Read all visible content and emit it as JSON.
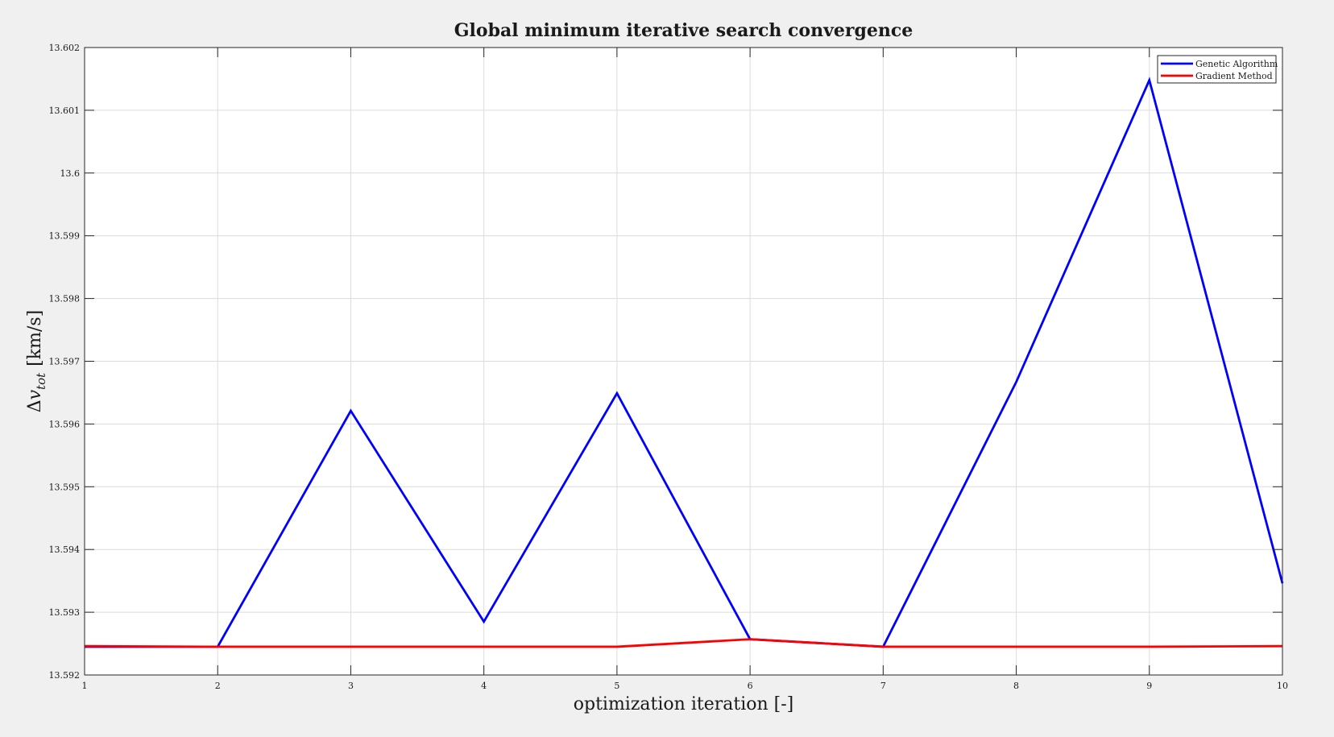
{
  "chart_data": {
    "type": "line",
    "title": "Global minimum iterative search convergence",
    "xlabel": "optimization iteration [-]",
    "ylabel": "Δv_tot [km/s]",
    "ylabel_parts": {
      "delta": "Δ",
      "var": "v",
      "sub": "tot",
      "units": "[km/s]"
    },
    "xlim": [
      1,
      10
    ],
    "ylim": [
      13.592,
      13.602
    ],
    "xticks": [
      1,
      2,
      3,
      4,
      5,
      6,
      7,
      8,
      9,
      10
    ],
    "xtick_labels": [
      "1",
      "2",
      "3",
      "4",
      "5",
      "6",
      "7",
      "8",
      "9",
      "10"
    ],
    "yticks": [
      13.592,
      13.593,
      13.594,
      13.595,
      13.596,
      13.597,
      13.598,
      13.599,
      13.6,
      13.601,
      13.602
    ],
    "ytick_labels": [
      "13.592",
      "13.593",
      "13.594",
      "13.595",
      "13.596",
      "13.597",
      "13.598",
      "13.599",
      "13.6",
      "13.601",
      "13.602"
    ],
    "grid": true,
    "legend_position": "top-right",
    "background": "#f0f0f0",
    "plot_background": "#ffffff",
    "grid_color": "#dcdcdc",
    "series": [
      {
        "name": "Genetic Algorithm",
        "color": "#0000ff",
        "x": [
          1,
          2,
          3,
          4,
          5,
          6,
          7,
          8,
          9,
          10
        ],
        "y": [
          13.59245,
          13.59245,
          13.59621,
          13.59285,
          13.59649,
          13.59257,
          13.59245,
          13.59667,
          13.60148,
          13.59346
        ]
      },
      {
        "name": "Gradient Method",
        "color": "#ff0000",
        "x": [
          1,
          2,
          3,
          4,
          5,
          6,
          7,
          8,
          9,
          10
        ],
        "y": [
          13.59246,
          13.59245,
          13.59245,
          13.59245,
          13.59245,
          13.59257,
          13.59245,
          13.59245,
          13.59245,
          13.59246
        ]
      }
    ]
  }
}
